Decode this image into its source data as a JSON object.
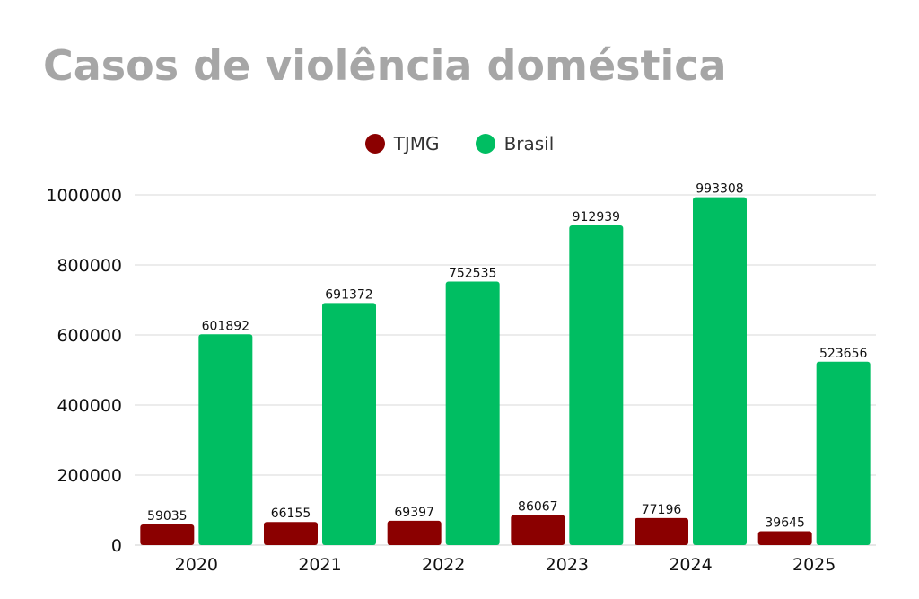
{
  "title": "Casos de violência doméstica",
  "chart_data": {
    "type": "bar",
    "title": "Casos de violência doméstica",
    "xlabel": "",
    "ylabel": "",
    "categories": [
      "2020",
      "2021",
      "2022",
      "2023",
      "2024",
      "2025"
    ],
    "series": [
      {
        "name": "TJMG",
        "color": "#8b0000",
        "values": [
          59035,
          66155,
          69397,
          86067,
          77196,
          39645
        ]
      },
      {
        "name": "Brasil",
        "color": "#00be62",
        "values": [
          601892,
          691372,
          752535,
          912939,
          993308,
          523656
        ]
      }
    ],
    "ylim": [
      0,
      1000000
    ],
    "yticks": [
      "0",
      "200000",
      "400000",
      "600000",
      "800000",
      "1000000"
    ],
    "grid": true,
    "legend_position": "top-center",
    "data_labels": true
  }
}
